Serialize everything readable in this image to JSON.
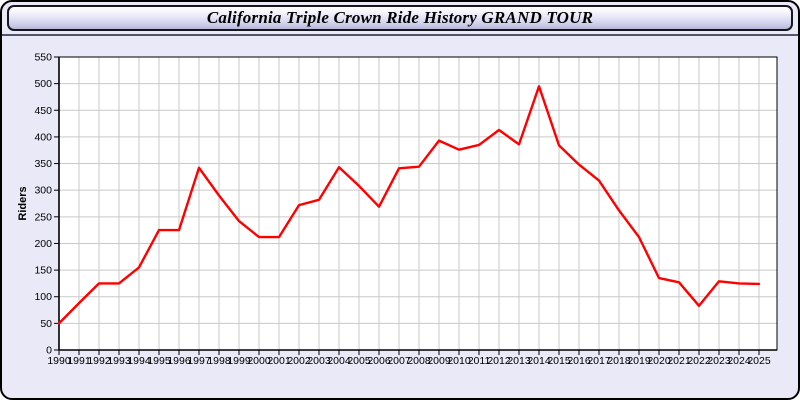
{
  "header": {
    "title": "California Triple Crown Ride History GRAND TOUR"
  },
  "chart_data": {
    "type": "line",
    "title": "California Triple Crown Ride History GRAND TOUR",
    "xlabel": "",
    "ylabel": "Riders",
    "x": [
      1990,
      1991,
      1992,
      1993,
      1994,
      1995,
      1996,
      1997,
      1998,
      1999,
      2000,
      2001,
      2002,
      2003,
      2004,
      2005,
      2006,
      2007,
      2008,
      2009,
      2010,
      2011,
      2012,
      2013,
      2014,
      2015,
      2016,
      2017,
      2018,
      2019,
      2020,
      2021,
      2022,
      2023,
      2024,
      2025
    ],
    "series": [
      {
        "name": "Riders",
        "values": [
          50,
          88,
          125,
          125,
          155,
          225,
          225,
          342,
          290,
          242,
          212,
          212,
          272,
          282,
          343,
          308,
          269,
          341,
          344,
          393,
          376,
          385,
          413,
          386,
          495,
          384,
          348,
          318,
          262,
          212,
          135,
          127,
          83,
          129,
          125,
          124
        ]
      }
    ],
    "ylim": [
      0,
      550
    ],
    "ytick_step": 50,
    "grid": true,
    "legend_position": "none"
  },
  "colors": {
    "line": "#ff0000",
    "grid": "#c9c9c9",
    "plot_bg": "#ffffff",
    "page_bg": "#e9e9f8",
    "axis": "#000000",
    "tick_text": "#000000"
  }
}
